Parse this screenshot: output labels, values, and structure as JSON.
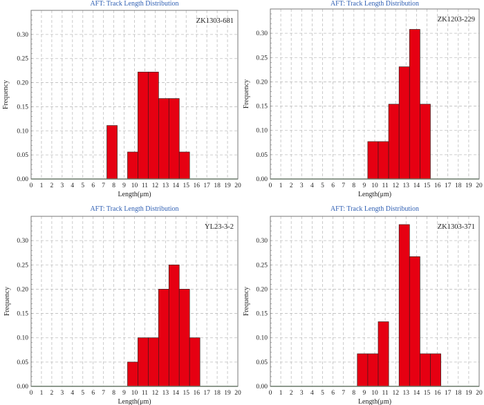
{
  "chart_data": [
    {
      "type": "bar",
      "title": "AFT: Track Length Distribution",
      "sample": "ZK1303-681",
      "xlabel": "Length(μm)",
      "ylabel": "Frequency",
      "xlim": [
        0,
        20
      ],
      "ylim": [
        0,
        0.35
      ],
      "xticks": [
        0,
        1,
        2,
        3,
        4,
        5,
        6,
        7,
        8,
        9,
        10,
        11,
        12,
        13,
        14,
        15,
        16,
        17,
        18,
        19,
        20
      ],
      "yticks": [
        "0.00",
        "0.05",
        "0.10",
        "0.15",
        "0.20",
        "0.25",
        "0.30"
      ],
      "grid": true,
      "bar_color": "#e60012",
      "bins": [
        {
          "start": 7.33,
          "end": 8.33,
          "value": 0.111
        },
        {
          "start": 9.33,
          "end": 10.33,
          "value": 0.056
        },
        {
          "start": 10.33,
          "end": 11.33,
          "value": 0.222
        },
        {
          "start": 11.33,
          "end": 12.33,
          "value": 0.222
        },
        {
          "start": 12.33,
          "end": 13.33,
          "value": 0.167
        },
        {
          "start": 13.33,
          "end": 14.33,
          "value": 0.167
        },
        {
          "start": 14.33,
          "end": 15.33,
          "value": 0.056
        }
      ]
    },
    {
      "type": "bar",
      "title": "AFT: Track Length Distribution",
      "sample": "ZK1203-229",
      "xlabel": "Length(μm)",
      "ylabel": "Frequency",
      "xlim": [
        0,
        20
      ],
      "ylim": [
        0,
        0.35
      ],
      "xticks": [
        0,
        1,
        2,
        3,
        4,
        5,
        6,
        7,
        8,
        9,
        10,
        11,
        12,
        13,
        14,
        15,
        16,
        17,
        18,
        19,
        20
      ],
      "yticks": [
        "0.00",
        "0.05",
        "0.10",
        "0.15",
        "0.20",
        "0.25",
        "0.30"
      ],
      "grid": true,
      "bar_color": "#e60012",
      "bins": [
        {
          "start": 9.33,
          "end": 10.33,
          "value": 0.077
        },
        {
          "start": 10.33,
          "end": 11.33,
          "value": 0.077
        },
        {
          "start": 11.33,
          "end": 12.33,
          "value": 0.154
        },
        {
          "start": 12.33,
          "end": 13.33,
          "value": 0.231
        },
        {
          "start": 13.33,
          "end": 14.33,
          "value": 0.308
        },
        {
          "start": 14.33,
          "end": 15.33,
          "value": 0.154
        }
      ]
    },
    {
      "type": "bar",
      "title": "AFT: Track Length Distribution",
      "sample": "YL23-3-2",
      "xlabel": "Length(μm)",
      "ylabel": "Frequency",
      "xlim": [
        0,
        20
      ],
      "ylim": [
        0,
        0.35
      ],
      "xticks": [
        0,
        1,
        2,
        3,
        4,
        5,
        6,
        7,
        8,
        9,
        10,
        11,
        12,
        13,
        14,
        15,
        16,
        17,
        18,
        19,
        20
      ],
      "yticks": [
        "0.00",
        "0.05",
        "0.10",
        "0.15",
        "0.20",
        "0.25",
        "0.30"
      ],
      "grid": true,
      "bar_color": "#e60012",
      "bins": [
        {
          "start": 9.33,
          "end": 10.33,
          "value": 0.05
        },
        {
          "start": 10.33,
          "end": 11.33,
          "value": 0.1
        },
        {
          "start": 11.33,
          "end": 12.33,
          "value": 0.1
        },
        {
          "start": 12.33,
          "end": 13.33,
          "value": 0.2
        },
        {
          "start": 13.33,
          "end": 14.33,
          "value": 0.25
        },
        {
          "start": 14.33,
          "end": 15.33,
          "value": 0.2
        },
        {
          "start": 15.33,
          "end": 16.33,
          "value": 0.1
        }
      ]
    },
    {
      "type": "bar",
      "title": "AFT: Track Length Distribution",
      "sample": "ZK1303-371",
      "xlabel": "Length(μm)",
      "ylabel": "Frequency",
      "xlim": [
        0,
        20
      ],
      "ylim": [
        0,
        0.35
      ],
      "xticks": [
        0,
        1,
        2,
        3,
        4,
        5,
        6,
        7,
        8,
        9,
        10,
        11,
        12,
        13,
        14,
        15,
        16,
        17,
        18,
        19,
        20
      ],
      "yticks": [
        "0.00",
        "0.05",
        "0.10",
        "0.15",
        "0.20",
        "0.25",
        "0.30"
      ],
      "grid": true,
      "bar_color": "#e60012",
      "bins": [
        {
          "start": 8.33,
          "end": 9.33,
          "value": 0.067
        },
        {
          "start": 9.33,
          "end": 10.33,
          "value": 0.067
        },
        {
          "start": 10.33,
          "end": 11.33,
          "value": 0.133
        },
        {
          "start": 12.33,
          "end": 13.33,
          "value": 0.333
        },
        {
          "start": 13.33,
          "end": 14.33,
          "value": 0.267
        },
        {
          "start": 14.33,
          "end": 15.33,
          "value": 0.067
        },
        {
          "start": 15.33,
          "end": 16.33,
          "value": 0.067
        }
      ]
    }
  ]
}
